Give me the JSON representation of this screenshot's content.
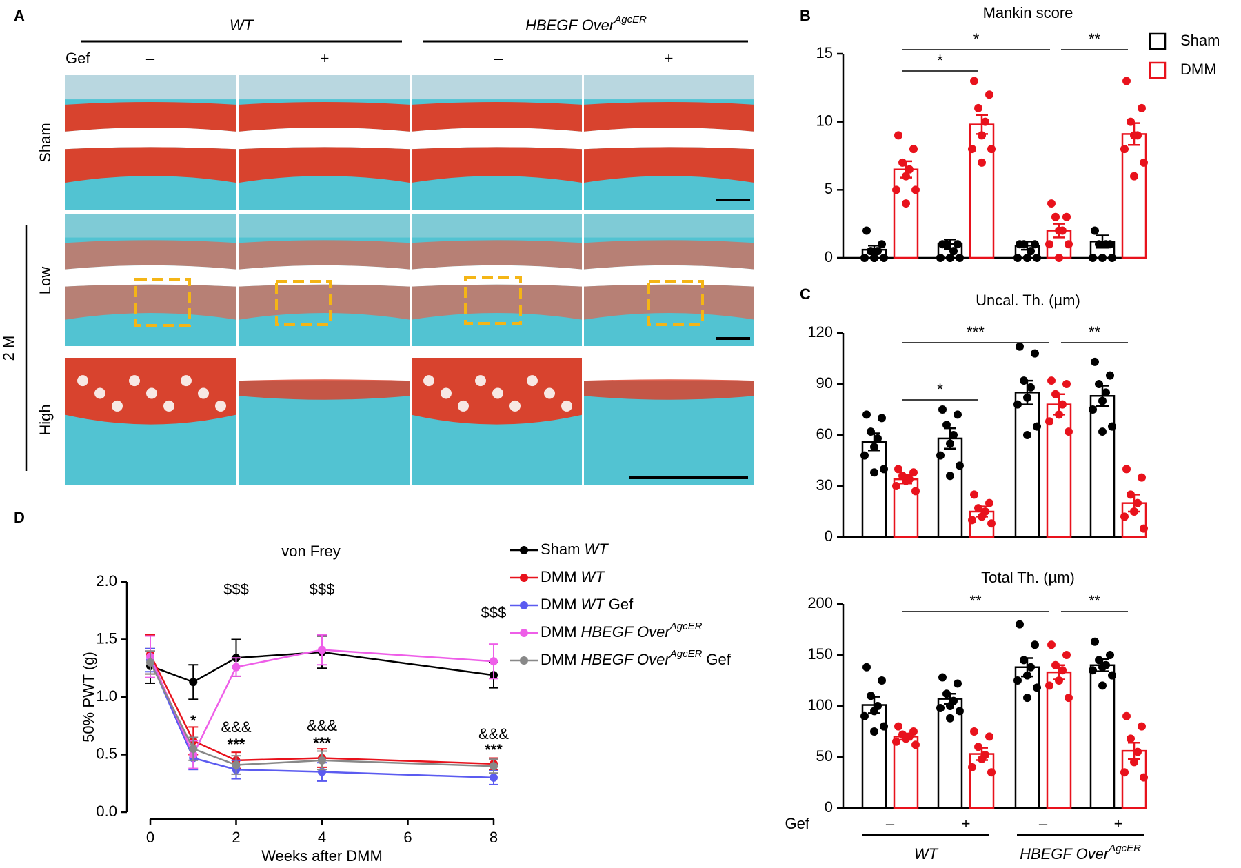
{
  "panel_labels": [
    "A",
    "B",
    "C",
    "D"
  ],
  "panel_a": {
    "groups": [
      [
        {
          "text": "WT",
          "italic": true
        }
      ],
      [
        {
          "text": "HBEGF Over",
          "italic": true
        },
        {
          "text": "AgcER",
          "italic": true,
          "sup": true
        }
      ]
    ],
    "treatment_label": "Gef",
    "treatments": [
      "–",
      "+",
      "–",
      "+"
    ],
    "rows": [
      "Sham",
      "Low",
      "High"
    ],
    "timepoint": "2 M"
  },
  "chart_data": [
    {
      "type": "bar",
      "title": "Mankin score",
      "categories": [
        null,
        null,
        null,
        null
      ],
      "ylim": [
        0,
        15
      ],
      "yticks": [
        0,
        5,
        10,
        15
      ],
      "legend": "upper right",
      "series": [
        {
          "name": "Sham",
          "color": "#000000",
          "values": [
            0.6,
            1.0,
            0.9,
            1.2
          ],
          "errors": [
            0.3,
            0.35,
            0.3,
            0.45
          ],
          "points": [
            [
              2,
              1,
              0.5,
              0.5,
              0,
              0,
              0,
              0
            ],
            [
              1,
              1,
              1,
              0.5,
              0,
              0,
              0,
              0
            ],
            [
              1,
              1,
              1,
              0.5,
              0,
              0,
              0,
              0
            ],
            [
              2,
              1,
              1,
              1,
              0,
              0,
              0
            ]
          ]
        },
        {
          "name": "DMM",
          "color": "#e8121c",
          "values": [
            6.5,
            9.8,
            2.0,
            9.1
          ],
          "errors": [
            0.6,
            0.7,
            0.5,
            0.8
          ],
          "points": [
            [
              9,
              8,
              7,
              6.5,
              6,
              5,
              5,
              4
            ],
            [
              13,
              12,
              11,
              10,
              9,
              8,
              8,
              7
            ],
            [
              4,
              3,
              3,
              2,
              2,
              1,
              1,
              0
            ],
            [
              13,
              11,
              10,
              9,
              9,
              8,
              7,
              6
            ]
          ]
        }
      ],
      "annotations": [
        "*",
        "*",
        "**"
      ]
    },
    {
      "type": "bar",
      "title": "Uncal. Th. (µm)",
      "categories": [
        null,
        null,
        null,
        null
      ],
      "ylim": [
        0,
        120
      ],
      "yticks": [
        0,
        30,
        60,
        90,
        120
      ],
      "series": [
        {
          "name": "Sham",
          "color": "#000000",
          "values": [
            56,
            58,
            85,
            83
          ],
          "errors": [
            5,
            6,
            7,
            6
          ],
          "points": [
            [
              72,
              70,
              62,
              58,
              53,
              48,
              40,
              38
            ],
            [
              75,
              72,
              66,
              60,
              55,
              48,
              42,
              36
            ],
            [
              112,
              108,
              92,
              88,
              82,
              78,
              65,
              60
            ],
            [
              103,
              95,
              90,
              85,
              80,
              75,
              65,
              62
            ]
          ]
        },
        {
          "name": "DMM",
          "color": "#e8121c",
          "values": [
            34,
            15,
            78,
            20
          ],
          "errors": [
            2.5,
            3,
            6,
            5
          ],
          "points": [
            [
              40,
              38,
              36,
              34,
              33,
              30,
              27
            ],
            [
              25,
              20,
              17,
              15,
              12,
              10,
              8
            ],
            [
              92,
              90,
              84,
              78,
              72,
              68,
              62
            ],
            [
              40,
              35,
              25,
              20,
              15,
              12,
              5
            ]
          ]
        }
      ],
      "annotations": [
        "***",
        "*",
        "**"
      ]
    },
    {
      "type": "bar",
      "title": "Total Th. (µm)",
      "categories": [
        "–",
        "+",
        "–",
        "+"
      ],
      "x_label": "Gef",
      "groups": [
        [
          {
            "text": "WT",
            "italic": true
          }
        ],
        [
          {
            "text": "HBEGF Over",
            "italic": true
          },
          {
            "text": "AgcER",
            "italic": true,
            "sup": true
          }
        ]
      ],
      "ylim": [
        0,
        200
      ],
      "yticks": [
        0,
        50,
        100,
        150,
        200
      ],
      "series": [
        {
          "name": "Sham",
          "color": "#000000",
          "values": [
            101,
            107,
            138,
            140
          ],
          "errors": [
            8,
            5,
            9,
            6
          ],
          "points": [
            [
              138,
              125,
              110,
              100,
              95,
              90,
              80,
              75
            ],
            [
              128,
              122,
              112,
              105,
              100,
              98,
              95,
              88
            ],
            [
              180,
              160,
              145,
              138,
              130,
              125,
              118,
              108
            ],
            [
              163,
              150,
              145,
              140,
              138,
              135,
              130,
              120
            ]
          ]
        },
        {
          "name": "DMM",
          "color": "#e8121c",
          "values": [
            70,
            53,
            133,
            56
          ],
          "errors": [
            3,
            6,
            7,
            8
          ],
          "points": [
            [
              80,
              75,
              72,
              70,
              68,
              65,
              62
            ],
            [
              75,
              70,
              60,
              52,
              48,
              40,
              35
            ],
            [
              160,
              150,
              140,
              135,
              125,
              120,
              108
            ],
            [
              90,
              80,
              68,
              55,
              45,
              35,
              30
            ]
          ]
        }
      ],
      "annotations": [
        "**",
        "**"
      ]
    },
    {
      "type": "line",
      "title": "von Frey",
      "x_label": "Weeks after DMM",
      "y_label": "50% PWT (g)",
      "x": [
        0,
        1,
        2,
        4,
        8
      ],
      "xlim": [
        0,
        8
      ],
      "xticks": [
        0,
        2,
        4,
        6,
        8
      ],
      "ylim": [
        0,
        2
      ],
      "yticks": [
        {
          "value": 0,
          "label": "0.0"
        },
        {
          "value": 0.5,
          "label": "0.5"
        },
        {
          "value": 1,
          "label": "1.0"
        },
        {
          "value": 1.5,
          "label": "1.5"
        },
        {
          "value": 2,
          "label": "2.0"
        }
      ],
      "legend": "right",
      "series": [
        {
          "name": [
            {
              "text": "Sham"
            },
            {
              "text": "WT",
              "italic": true
            }
          ],
          "color": "#000000",
          "values": [
            1.27,
            1.13,
            1.34,
            1.39,
            1.19
          ],
          "errors": [
            0.15,
            0.15,
            0.16,
            0.14,
            0.11
          ]
        },
        {
          "name": [
            {
              "text": "DMM"
            },
            {
              "text": "WT",
              "italic": true
            }
          ],
          "color": "#e8121c",
          "values": [
            1.37,
            0.62,
            0.45,
            0.47,
            0.42
          ],
          "errors": [
            0.17,
            0.12,
            0.07,
            0.08,
            0.05
          ]
        },
        {
          "name": [
            {
              "text": "DMM"
            },
            {
              "text": "WT",
              "italic": true
            },
            {
              "text": "Gef"
            }
          ],
          "color": "#5b5bf0",
          "values": [
            1.32,
            0.47,
            0.37,
            0.35,
            0.3
          ],
          "errors": [
            0.1,
            0.1,
            0.08,
            0.08,
            0.06
          ]
        },
        {
          "name": [
            {
              "text": "DMM"
            },
            {
              "text": "HBEGF Over",
              "italic": true
            },
            {
              "text": "AgcER",
              "italic": true,
              "sup": true
            }
          ],
          "color": "#ee5ee8",
          "values": [
            1.35,
            0.5,
            1.26,
            1.41,
            1.31
          ],
          "errors": [
            0.18,
            0.12,
            0.08,
            0.13,
            0.15
          ]
        },
        {
          "name": [
            {
              "text": "DMM"
            },
            {
              "text": "HBEGF Over",
              "italic": true
            },
            {
              "text": "AgcER",
              "italic": true,
              "sup": true
            },
            {
              "text": "Gef"
            }
          ],
          "color": "#888888",
          "values": [
            1.3,
            0.55,
            0.41,
            0.45,
            0.4
          ],
          "errors": [
            0.1,
            0.1,
            0.08,
            0.08,
            0.06
          ]
        }
      ],
      "annotations": [
        "$$$",
        "$$$",
        "$$$",
        "*",
        "&&&",
        "&&&",
        "&&&",
        "***",
        "***",
        "***"
      ]
    }
  ]
}
